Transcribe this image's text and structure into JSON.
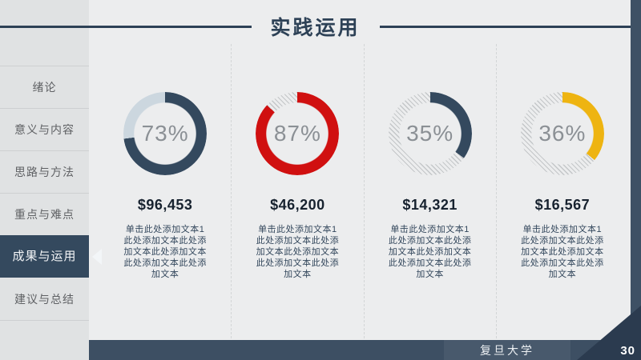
{
  "slide": {
    "title": "实践运用",
    "footer": {
      "school": "复旦大学",
      "page": "30"
    }
  },
  "sidebar": {
    "items": [
      {
        "label": "绪论",
        "active": false
      },
      {
        "label": "意义与内容",
        "active": false
      },
      {
        "label": "思路与方法",
        "active": false
      },
      {
        "label": "重点与难点",
        "active": false
      },
      {
        "label": "成果与运用",
        "active": true
      },
      {
        "label": "建议与总结",
        "active": false
      }
    ]
  },
  "colors": {
    "navy": "#34495e",
    "red": "#d01010",
    "gold": "#eeb411",
    "solid_track": "#ccd7df",
    "footer_bar": "#3d4f63",
    "corner": "#2b3b4f"
  },
  "chart_data": {
    "type": "pie",
    "subtype": "donut-progress-set",
    "title": "实践运用",
    "legend_position": "none",
    "items": [
      {
        "percent": 73,
        "percent_label": "73%",
        "amount": "$96,453",
        "color": "#34495e",
        "track": "solid",
        "track_color": "#ccd7df",
        "description": "单击此处添加文本1此处添加文本此处添加文本此处添加文本此处添加文本此处添加文本"
      },
      {
        "percent": 87,
        "percent_label": "87%",
        "amount": "$46,200",
        "color": "#d01010",
        "track": "hatched",
        "track_color": "#c4c7c9",
        "description": "单击此处添加文本1此处添加文本此处添加文本此处添加文本此处添加文本此处添加文本"
      },
      {
        "percent": 35,
        "percent_label": "35%",
        "amount": "$14,321",
        "color": "#34495e",
        "track": "hatched",
        "track_color": "#c4c7c9",
        "description": "单击此处添加文本1此处添加文本此处添加文本此处添加文本此处添加文本此处添加文本"
      },
      {
        "percent": 36,
        "percent_label": "36%",
        "amount": "$16,567",
        "color": "#eeb411",
        "track": "hatched",
        "track_color": "#c4c7c9",
        "description": "单击此处添加文本1此处添加文本此处添加文本此处添加文本此处添加文本此处添加文本"
      }
    ]
  }
}
